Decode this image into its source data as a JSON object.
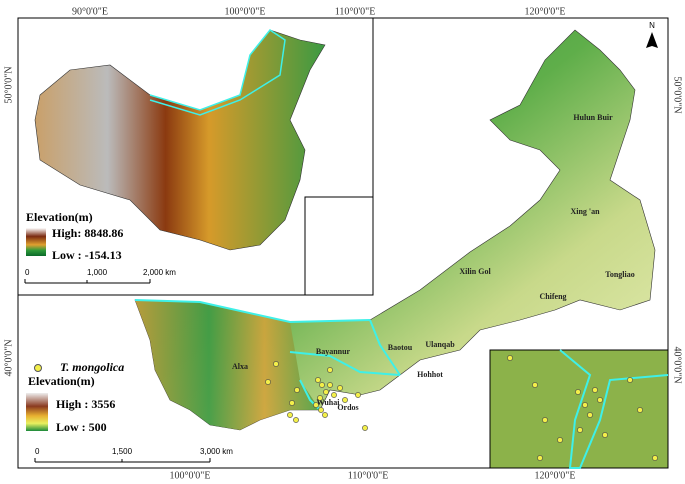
{
  "graticule": {
    "top": [
      "90°0'0\"E",
      "100°0'0\"E",
      "110°0'0\"E",
      "120°0'0\"E"
    ],
    "bottom": [
      "100°0'0\"E",
      "110°0'0\"E",
      "120°0'0\"E"
    ],
    "left": [
      "50°0'0\"N",
      "40°0'0\"N"
    ],
    "right": [
      "50°0'0\"N",
      "40°0'0\"N"
    ]
  },
  "north_arrow": "N",
  "inset": {
    "legend_title": "Elevation(m)",
    "high": "High: 8848.86",
    "low": "Low : -154.13",
    "scale": [
      "0",
      "1,000",
      "2,000 km"
    ]
  },
  "legend": {
    "species": "T. mongolica",
    "title": "Elevation(m)",
    "high": "High : 3556",
    "low": "Low : 500",
    "scale": [
      "0",
      "1,500",
      "3,000 km"
    ]
  },
  "places": [
    "Hulun Buir",
    "Xing 'an",
    "Xilin Gol",
    "Tongliao",
    "Chifeng",
    "Ulanqab",
    "Baotou",
    "Hohhot",
    "Bayannur",
    "Alxa",
    "Ordos",
    "Wuhai"
  ]
}
